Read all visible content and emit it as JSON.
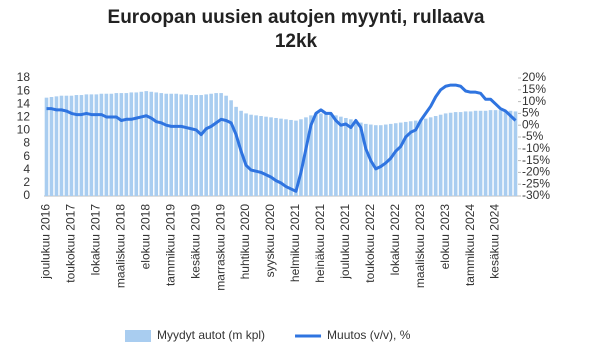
{
  "chart_data": {
    "type": "bar",
    "title": "Euroopan uusien autojen myynti, rullaava 12kk",
    "categories": [
      "joulukuu 2016",
      null,
      null,
      null,
      null,
      "toukokuu 2017",
      null,
      null,
      null,
      null,
      "lokakuu 2017",
      null,
      null,
      null,
      null,
      "maaliskuu 2018",
      null,
      null,
      null,
      null,
      "elokuu 2018",
      null,
      null,
      null,
      null,
      "tammikuu 2019",
      null,
      null,
      null,
      null,
      "kesäkuu 2019",
      null,
      null,
      null,
      null,
      "marraskuu 2019",
      null,
      null,
      null,
      null,
      "huhtikuu 2020",
      null,
      null,
      null,
      null,
      "syyskuu 2020",
      null,
      null,
      null,
      null,
      "helmikuu 2021",
      null,
      null,
      null,
      null,
      "heinäkuu 2021",
      null,
      null,
      null,
      null,
      "joulukuu 2021",
      null,
      null,
      null,
      null,
      "toukokuu 2022",
      null,
      null,
      null,
      null,
      "lokakuu 2022",
      null,
      null,
      null,
      null,
      "maaliskuu 2023",
      null,
      null,
      null,
      null,
      "elokuu 2023",
      null,
      null,
      null,
      null,
      "tammikuu 2024",
      null,
      null,
      null,
      null,
      "kesäkuu 2024",
      null,
      null,
      null,
      null
    ],
    "series": [
      {
        "name": "Myydyt autot (m kpl)",
        "type": "bar",
        "color": "#a9cdf0",
        "values": [
          15.0,
          15.1,
          15.2,
          15.3,
          15.3,
          15.3,
          15.4,
          15.4,
          15.5,
          15.5,
          15.5,
          15.6,
          15.6,
          15.6,
          15.7,
          15.7,
          15.7,
          15.8,
          15.8,
          15.9,
          16.0,
          15.9,
          15.8,
          15.7,
          15.6,
          15.6,
          15.6,
          15.5,
          15.5,
          15.4,
          15.4,
          15.4,
          15.5,
          15.6,
          15.7,
          15.7,
          15.3,
          14.6,
          13.6,
          13.0,
          12.6,
          12.4,
          12.3,
          12.2,
          12.1,
          12.0,
          11.9,
          11.8,
          11.7,
          11.6,
          11.5,
          11.7,
          12.0,
          12.3,
          12.6,
          12.6,
          12.5,
          12.4,
          12.3,
          12.1,
          11.9,
          11.7,
          11.5,
          11.2,
          11.0,
          10.9,
          10.8,
          10.8,
          10.9,
          11.0,
          11.1,
          11.2,
          11.3,
          11.4,
          11.5,
          11.6,
          11.8,
          12.0,
          12.2,
          12.4,
          12.6,
          12.7,
          12.8,
          12.8,
          12.9,
          12.9,
          13.0,
          13.0,
          13.0,
          13.1,
          13.1,
          13.1,
          13.0,
          13.0,
          12.9
        ]
      },
      {
        "name": "Muutos (v/v), %",
        "type": "line",
        "axis": "y2",
        "color": "#2f74e0",
        "values": [
          7,
          7,
          6.5,
          6.5,
          6,
          5,
          4.5,
          4.5,
          5,
          4.5,
          4.5,
          4.5,
          3.5,
          3.5,
          3.5,
          2,
          2.5,
          2.5,
          3,
          3.5,
          4,
          3,
          1.5,
          1,
          0,
          -0.5,
          -0.5,
          -0.5,
          -1,
          -1.5,
          -2,
          -4,
          -1.5,
          -0.5,
          1,
          2.5,
          2,
          1,
          -4,
          -11,
          -17,
          -19,
          -19.5,
          -20,
          -21,
          -22,
          -23.5,
          -24.5,
          -26,
          -27,
          -28,
          -20,
          -10,
          0,
          5,
          6.5,
          5,
          5,
          2,
          0,
          0.5,
          -1,
          2,
          -1,
          -10,
          -15,
          -18.5,
          -17.5,
          -16,
          -14,
          -11,
          -9,
          -5,
          -3,
          -2,
          2,
          5,
          8,
          12,
          15,
          16.5,
          17,
          17,
          16.5,
          14.5,
          14,
          14,
          13.5,
          11,
          11,
          9,
          7,
          6,
          4,
          2
        ]
      }
    ],
    "ylim": [
      0,
      18
    ],
    "yticks": [
      0,
      2,
      4,
      6,
      8,
      10,
      12,
      14,
      16,
      18
    ],
    "y2lim": [
      -30,
      20
    ],
    "y2ticks": [
      {
        "value": -30,
        "label": "-30%"
      },
      {
        "value": -25,
        "label": "-25%"
      },
      {
        "value": -20,
        "label": "-20%"
      },
      {
        "value": -15,
        "label": "-15%"
      },
      {
        "value": -10,
        "label": "-10%"
      },
      {
        "value": -5,
        "label": "-5%"
      },
      {
        "value": 0,
        "label": "0%"
      },
      {
        "value": 5,
        "label": "5%"
      },
      {
        "value": 10,
        "label": "10%"
      },
      {
        "value": 15,
        "label": "15%"
      },
      {
        "value": 20,
        "label": "20%"
      }
    ],
    "grid": false,
    "legend": "bottom"
  }
}
